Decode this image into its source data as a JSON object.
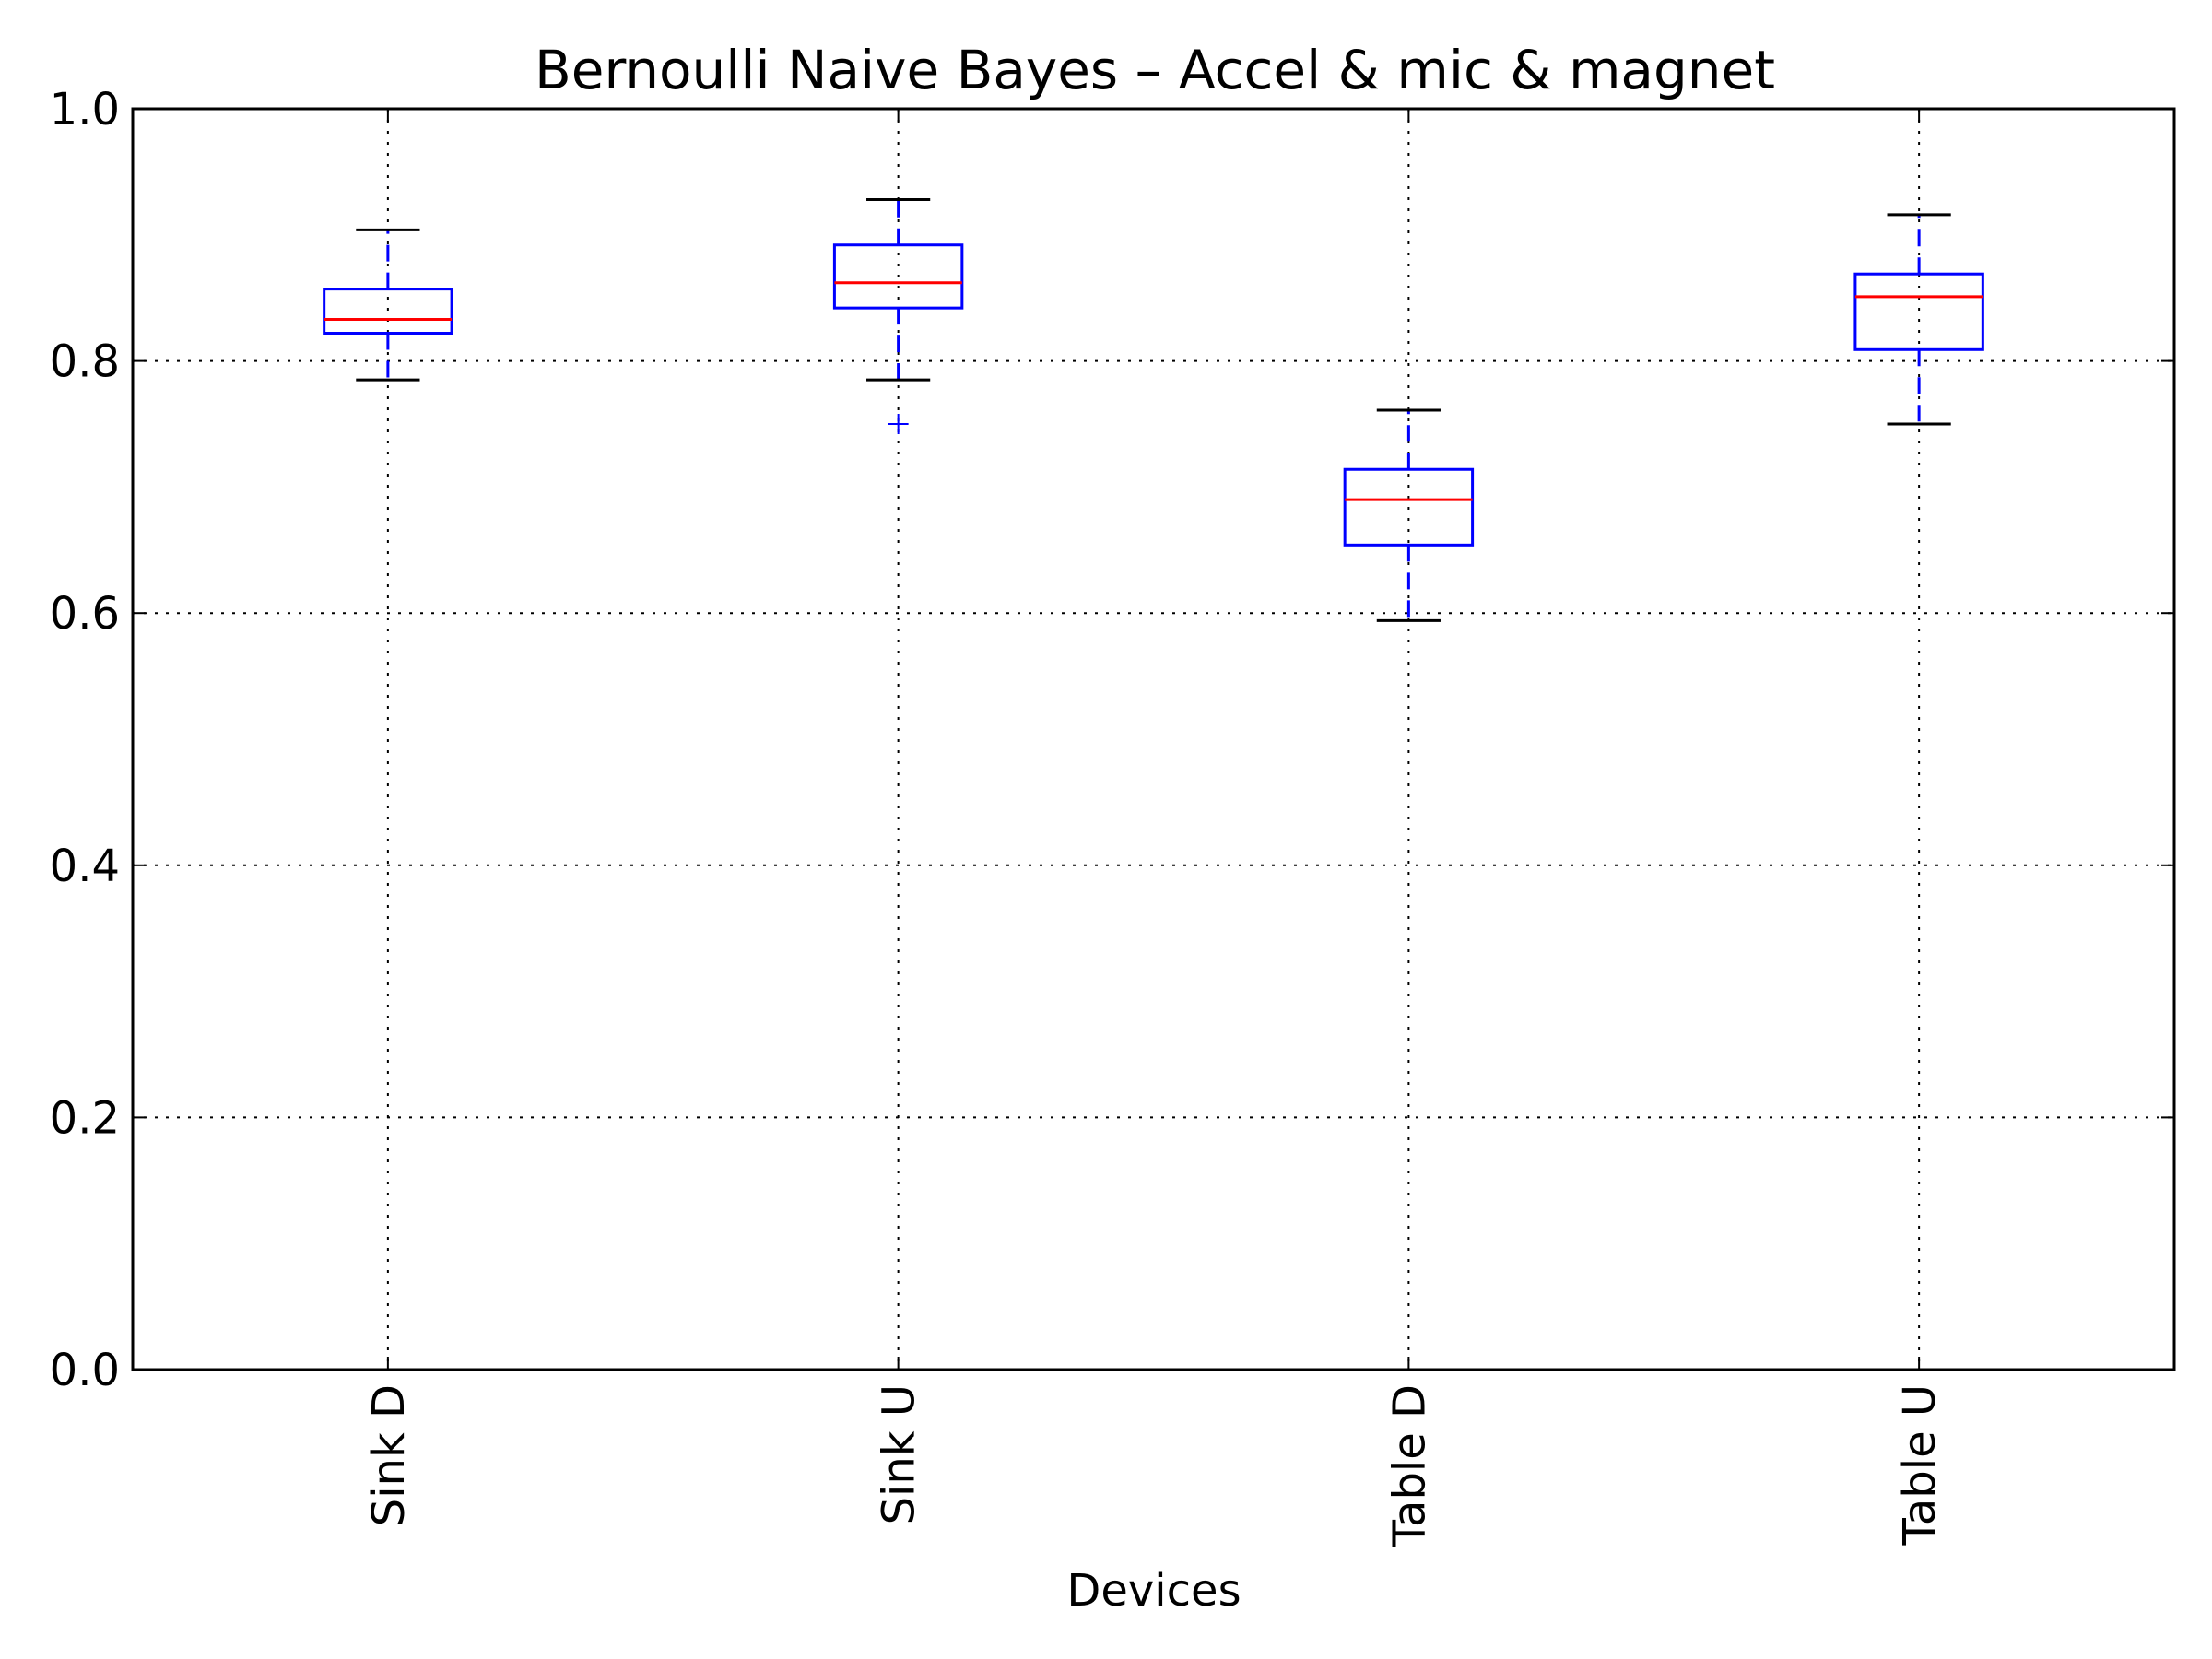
{
  "chart_data": {
    "type": "box",
    "title": "Bernoulli Naive Bayes – Accel & mic & magnet",
    "xlabel": "Devices",
    "ylabel": "",
    "ylim": [
      0.0,
      1.0
    ],
    "yticks": [
      "0.0",
      "0.2",
      "0.4",
      "0.6",
      "0.8",
      "1.0"
    ],
    "grid": true,
    "categories": [
      "Sink D",
      "Sink U",
      "Table D",
      "Table U"
    ],
    "boxes": [
      {
        "label": "Sink D",
        "whisker_low": 0.785,
        "q1": 0.822,
        "median": 0.833,
        "q3": 0.857,
        "whisker_high": 0.904,
        "outliers": []
      },
      {
        "label": "Sink U",
        "whisker_low": 0.785,
        "q1": 0.842,
        "median": 0.862,
        "q3": 0.892,
        "whisker_high": 0.928,
        "outliers": [
          0.75
        ]
      },
      {
        "label": "Table D",
        "whisker_low": 0.594,
        "q1": 0.654,
        "median": 0.69,
        "q3": 0.714,
        "whisker_high": 0.761,
        "outliers": []
      },
      {
        "label": "Table U",
        "whisker_low": 0.75,
        "q1": 0.809,
        "median": 0.851,
        "q3": 0.869,
        "whisker_high": 0.916,
        "outliers": []
      }
    ],
    "colors": {
      "box": "#0000ff",
      "median": "#ff0000",
      "cap": "#000000",
      "whisker": "#0000ff",
      "outlier": "#0000ff",
      "grid": "#000000"
    }
  }
}
